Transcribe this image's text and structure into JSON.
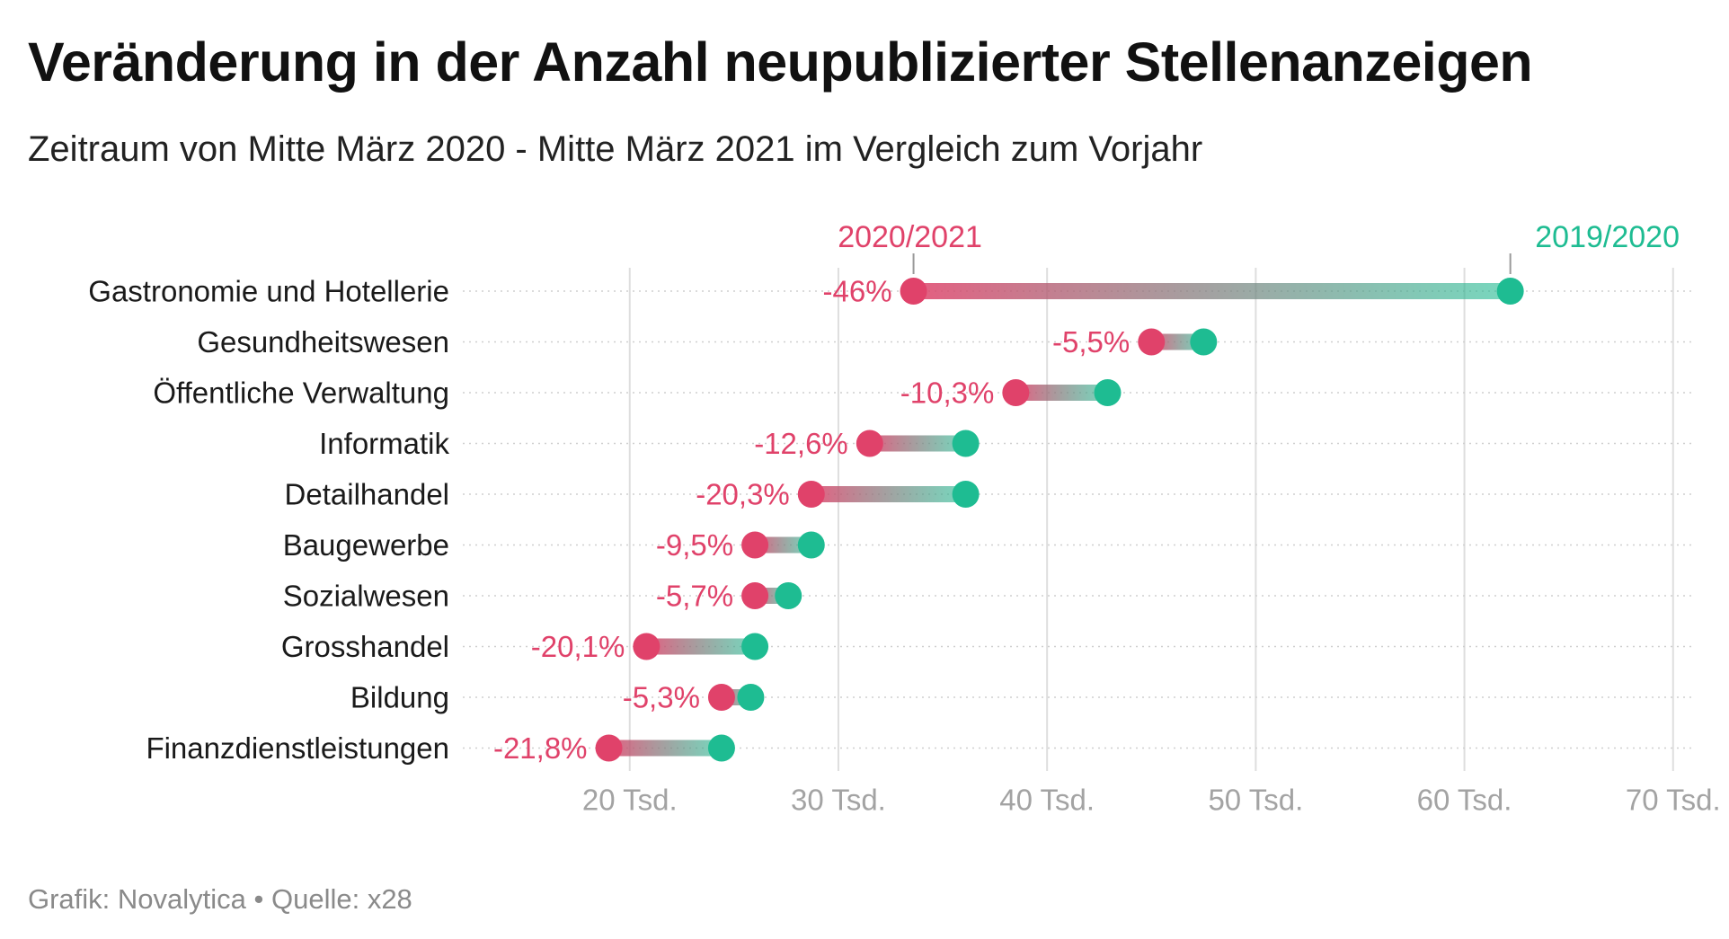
{
  "title": "Veränderung in der Anzahl neupublizierter Stellenanzeigen",
  "subtitle": "Zeitraum von Mitte März 2020 - Mitte März 2021 im Vergleich zum Vorjahr",
  "footer": "Grafik: Novalytica • Quelle: x28",
  "colors": {
    "series_2020_2021": "#e0426a",
    "series_2019_2020": "#1ebc92",
    "grid": "#dedede",
    "tick_text": "#a3a3a3"
  },
  "chart_data": {
    "type": "dumbbell",
    "title": "Veränderung in der Anzahl neupublizierter Stellenanzeigen",
    "subtitle": "Zeitraum von Mitte März 2020 - Mitte März 2021 im Vergleich zum Vorjahr",
    "xlim": [
      12000,
      71000
    ],
    "x_ticks": [
      20000,
      30000,
      40000,
      50000,
      60000,
      70000
    ],
    "x_tick_labels": [
      "20 Tsd.",
      "30 Tsd.",
      "40 Tsd.",
      "50 Tsd.",
      "60 Tsd.",
      "70 Tsd."
    ],
    "grid": "vertical",
    "legend_placement": "top, above first row",
    "series": [
      {
        "name": "2020/2021",
        "color": "#e0426a"
      },
      {
        "name": "2019/2020",
        "color": "#1ebc92"
      }
    ],
    "categories": [
      "Gastronomie und Hotellerie",
      "Gesundheitswesen",
      "Öffentliche Verwaltung",
      "Informatik",
      "Detailhandel",
      "Baugewerbe",
      "Sozialwesen",
      "Grosshandel",
      "Bildung",
      "Finanzdienstleistungen"
    ],
    "values_2020_2021": [
      33600,
      45000,
      38500,
      31500,
      28700,
      26000,
      26000,
      20800,
      24400,
      19000
    ],
    "values_2019_2020": [
      62200,
      47500,
      42900,
      36100,
      36100,
      28700,
      27600,
      26000,
      25800,
      24400
    ],
    "change_labels": [
      "-46%",
      "-5,5%",
      "-10,3%",
      "-12,6%",
      "-20,3%",
      "-9,5%",
      "-5,7%",
      "-20,1%",
      "-5,3%",
      "-21,8%"
    ]
  }
}
